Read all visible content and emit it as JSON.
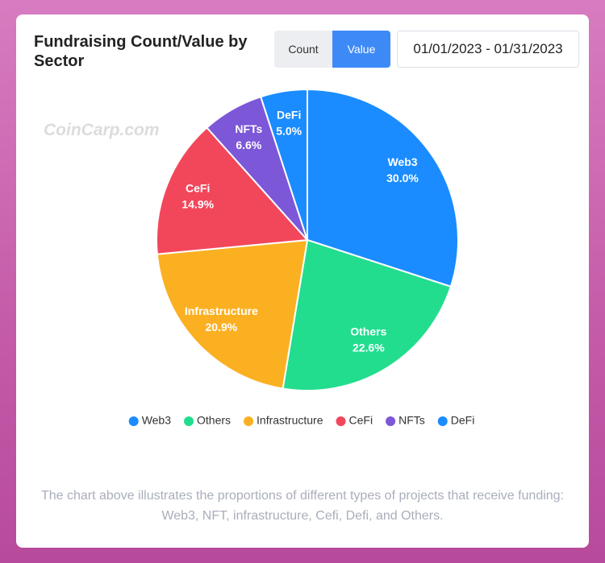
{
  "chart_data": {
    "type": "pie",
    "title": "Fundraising Count/Value by Sector",
    "categories": [
      "Web3",
      "Others",
      "Infrastructure",
      "CeFi",
      "NFTs",
      "DeFi"
    ],
    "values": [
      30.0,
      22.6,
      20.9,
      14.9,
      6.6,
      5.0
    ],
    "value_labels": [
      "30.0%",
      "22.6%",
      "20.9%",
      "14.9%",
      "6.6%",
      "5.0%"
    ],
    "colors": [
      "#1a8cff",
      "#22dd8e",
      "#fbb022",
      "#f2475b",
      "#7c57d8",
      "#1a8cff"
    ]
  },
  "controls": {
    "buttons": [
      "Count",
      "Value"
    ],
    "date_range": "01/01/2023 - 01/31/2023"
  },
  "watermark": "CoinCarp.com",
  "caption": "The chart above illustrates the proportions of different types of projects that receive funding: Web3, NFT, infrastructure, Cefi, Defi, and Others."
}
